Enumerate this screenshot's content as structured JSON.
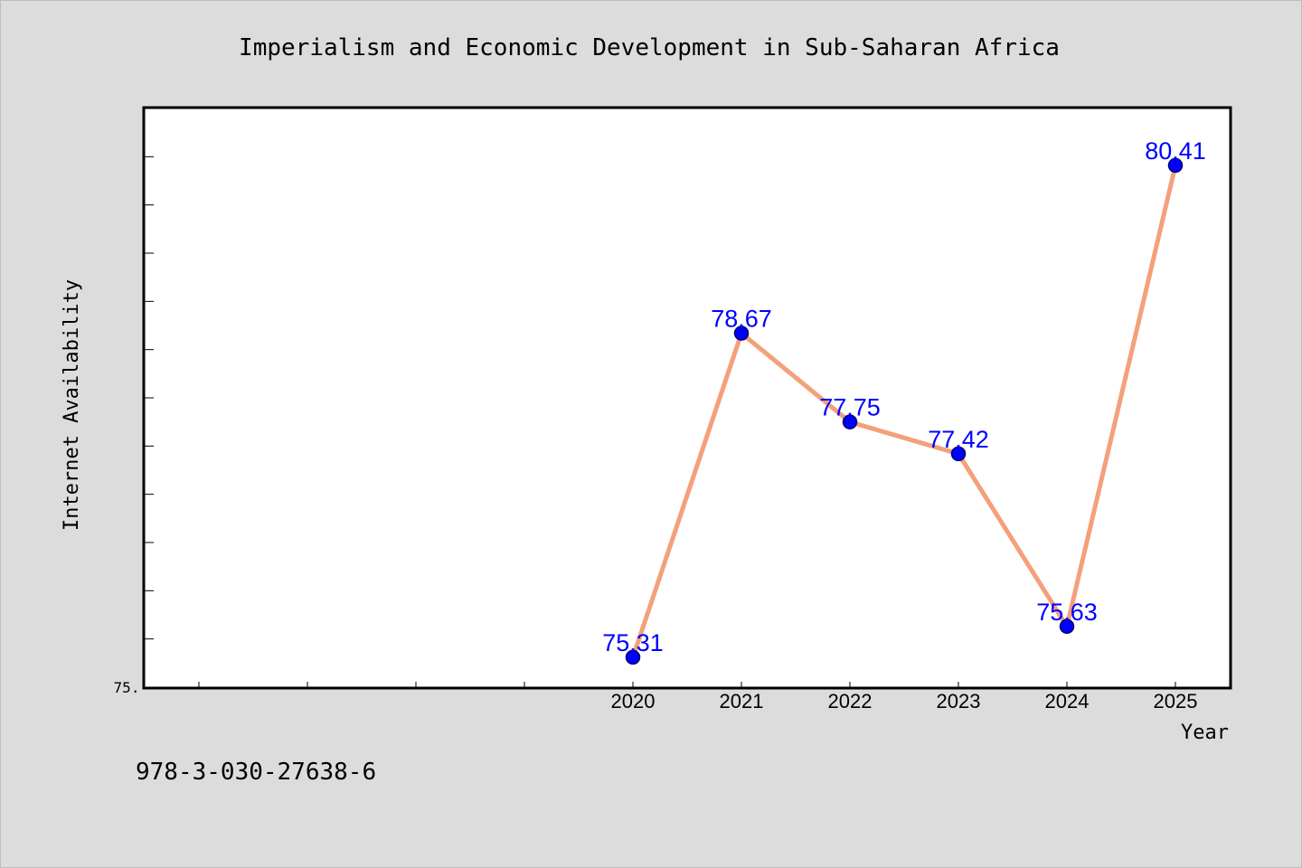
{
  "chart_data": {
    "type": "line",
    "title": "Imperialism and Economic Development in Sub-Saharan Africa",
    "xlabel": "Year",
    "ylabel": "Internet Availability",
    "x": [
      "2020",
      "2021",
      "2022",
      "2023",
      "2024",
      "2025"
    ],
    "series": [
      {
        "values": [
          75.31,
          78.67,
          77.75,
          77.42,
          75.63,
          80.41
        ],
        "labels": [
          "75.31",
          "78.67",
          "77.75",
          "77.42",
          "75.63",
          "80.41"
        ],
        "line_color": "#f4a07a",
        "marker_color": "#0000ff",
        "label_color": "#0000ff"
      }
    ],
    "y_tick_labels": [
      "75."
    ],
    "xlim": [
      2015.5,
      2025.5
    ],
    "ylim": [
      75.0,
      81.0
    ],
    "grid": false,
    "legend": "none"
  },
  "footer_text": "978-3-030-27638-6",
  "colors": {
    "background": "#dcdcdc",
    "plot_background": "#ffffff",
    "axis": "#000000",
    "text": "#000000"
  }
}
